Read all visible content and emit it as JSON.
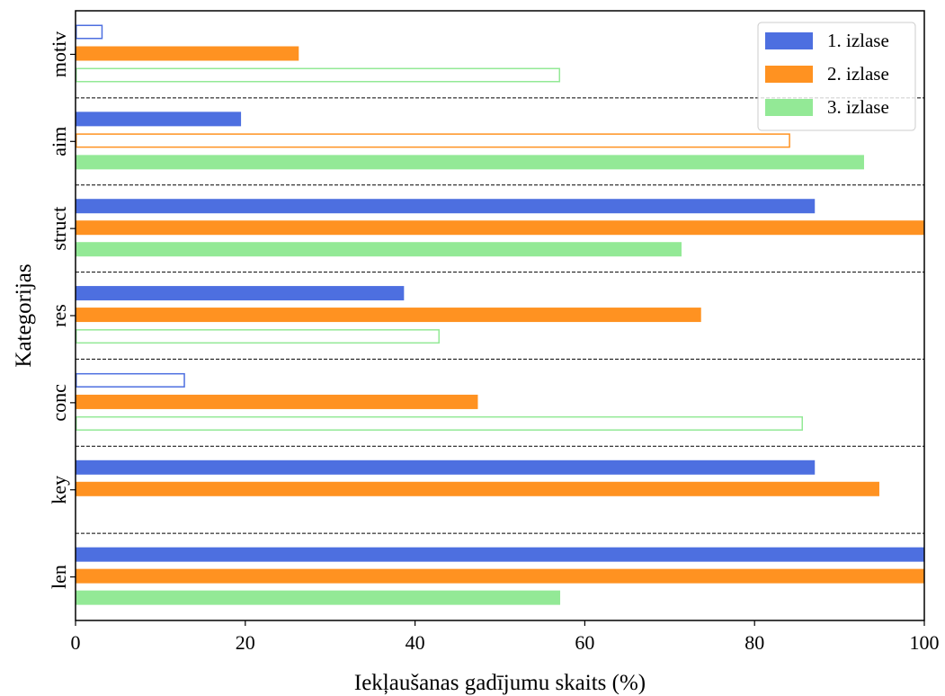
{
  "chart_data": {
    "type": "bar",
    "orientation": "horizontal",
    "title": "",
    "xlabel": "Iekļaušanas gadījumu skaits (%)",
    "ylabel": "Kategorijas",
    "xlim": [
      0,
      100
    ],
    "xticks": [
      "0",
      "20",
      "40",
      "60",
      "80",
      "100"
    ],
    "categories": [
      "motiv",
      "aim",
      "struct",
      "res",
      "conc",
      "key",
      "len"
    ],
    "series": [
      {
        "name": "1. izlase",
        "color": "#4d6fe0",
        "values": [
          3.2,
          19.5,
          87.1,
          38.7,
          12.9,
          87.1,
          100
        ],
        "outlined": [
          true,
          false,
          false,
          false,
          true,
          false,
          false
        ]
      },
      {
        "name": "2. izlase",
        "color": "#ff9221",
        "values": [
          26.3,
          84.2,
          100,
          73.7,
          47.4,
          94.7,
          100
        ],
        "outlined": [
          false,
          true,
          false,
          false,
          false,
          false,
          false
        ]
      },
      {
        "name": "3. izlase",
        "color": "#93e996",
        "values": [
          57.1,
          92.9,
          71.4,
          42.9,
          85.7,
          0,
          57.1
        ],
        "outlined": [
          true,
          false,
          false,
          true,
          true,
          false,
          false
        ]
      }
    ],
    "category_separators": "dashed",
    "legend_position": "top-right",
    "grid": false
  }
}
